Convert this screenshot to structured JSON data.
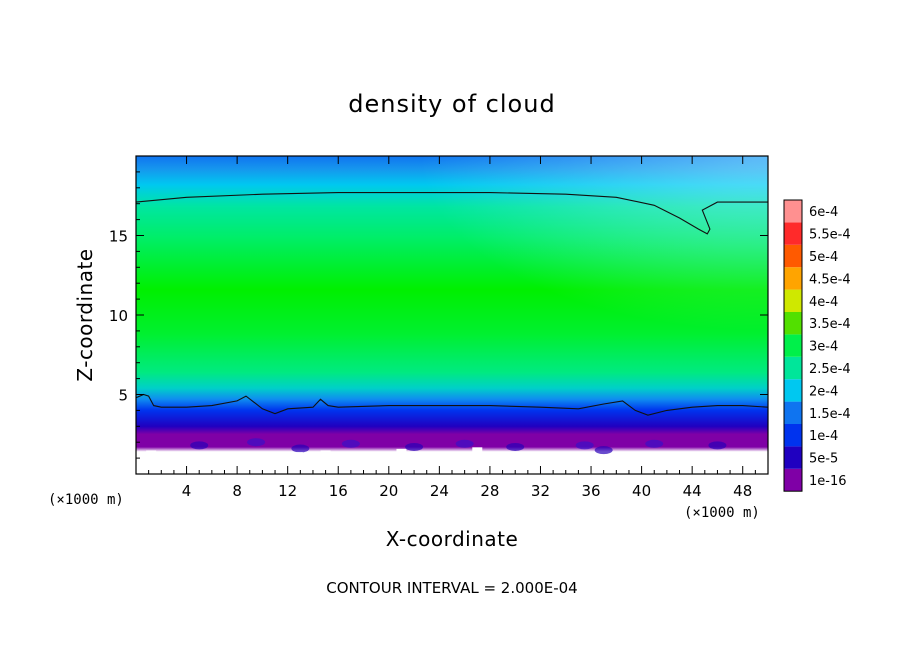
{
  "chart_data": {
    "type": "heatmap",
    "title": "density of cloud",
    "xlabel": "X-coordinate",
    "ylabel": "Z-coordinate",
    "x_unit": "(×1000 m)",
    "xlim": [
      0,
      50
    ],
    "ylim": [
      0,
      20
    ],
    "x_ticks": [
      4,
      8,
      12,
      16,
      20,
      24,
      28,
      32,
      36,
      40,
      44,
      48
    ],
    "y_ticks": [
      5,
      10,
      15
    ],
    "footnote": "CONTOUR INTERVAL = 2.000E-04",
    "colorbar": {
      "levels": [
        {
          "label": "1e-16",
          "color": "#7f00a6"
        },
        {
          "label": "5e-5",
          "color": "#1f00c0"
        },
        {
          "label": "1e-4",
          "color": "#0033ee"
        },
        {
          "label": "1.5e-4",
          "color": "#0f74f0"
        },
        {
          "label": "2e-4",
          "color": "#00c8f0"
        },
        {
          "label": "2.5e-4",
          "color": "#00e69a"
        },
        {
          "label": "3e-4",
          "color": "#00f04a"
        },
        {
          "label": "3.5e-4",
          "color": "#52e000"
        },
        {
          "label": "4e-4",
          "color": "#cfe800"
        },
        {
          "label": "4.5e-4",
          "color": "#ffa400"
        },
        {
          "label": "5e-4",
          "color": "#ff5a00"
        },
        {
          "label": "5.5e-4",
          "color": "#ff2a2a"
        },
        {
          "label": "6e-4",
          "color": "#ff9090"
        }
      ]
    },
    "contour_2e-4": {
      "top": {
        "x": [
          0,
          4,
          10,
          16,
          22,
          28,
          34,
          38,
          41,
          43,
          44.5,
          45.2,
          45.4,
          44.8,
          46,
          48,
          50
        ],
        "z": [
          17.1,
          17.4,
          17.6,
          17.7,
          17.7,
          17.7,
          17.6,
          17.4,
          16.9,
          16.1,
          15.4,
          15.1,
          15.4,
          16.6,
          17.1,
          17.1,
          17.1
        ]
      },
      "bottom": {
        "x": [
          0,
          0.6,
          1,
          1.4,
          2,
          4,
          6,
          8,
          8.7,
          9.2,
          10,
          11,
          12,
          14,
          14.6,
          15.2,
          16,
          20,
          24,
          28,
          32,
          35,
          37,
          38.5,
          39.5,
          40.5,
          42,
          44,
          46,
          48,
          50
        ],
        "z": [
          4.8,
          5.0,
          4.9,
          4.3,
          4.2,
          4.2,
          4.3,
          4.6,
          4.9,
          4.6,
          4.1,
          3.8,
          4.1,
          4.2,
          4.7,
          4.3,
          4.2,
          4.3,
          4.3,
          4.3,
          4.2,
          4.1,
          4.4,
          4.6,
          4.0,
          3.7,
          4.0,
          4.2,
          4.3,
          4.3,
          4.2
        ]
      }
    }
  }
}
